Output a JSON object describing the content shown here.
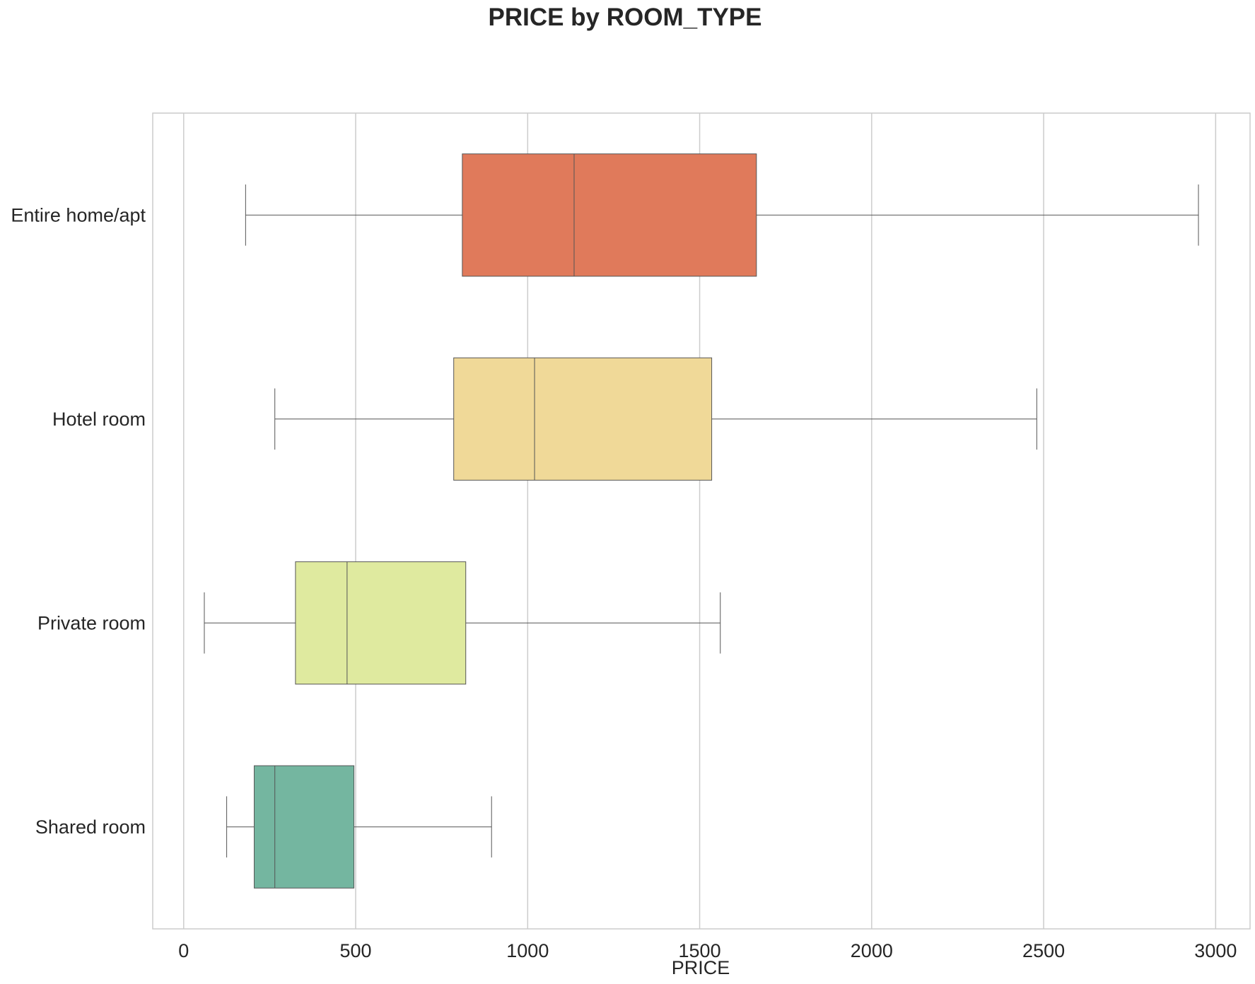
{
  "chart_data": {
    "type": "boxplot",
    "orientation": "horizontal",
    "title": "PRICE by ROOM_TYPE",
    "xlabel": "PRICE",
    "ylabel": "",
    "xlim": [
      -90,
      3100
    ],
    "xticks": [
      0,
      500,
      1000,
      1500,
      2000,
      2500,
      3000
    ],
    "grid": "vertical",
    "categories": [
      "Entire home/apt",
      "Hotel room",
      "Private room",
      "Shared room"
    ],
    "boxes": [
      {
        "category": "Entire home/apt",
        "whisker_low": 180,
        "q1": 810,
        "median": 1135,
        "q3": 1665,
        "whisker_high": 2950,
        "color": "#e07a5b"
      },
      {
        "category": "Hotel room",
        "whisker_low": 265,
        "q1": 785,
        "median": 1020,
        "q3": 1535,
        "whisker_high": 2480,
        "color": "#f0d998"
      },
      {
        "category": "Private room",
        "whisker_low": 60,
        "q1": 325,
        "median": 475,
        "q3": 820,
        "whisker_high": 1560,
        "color": "#dfea9f"
      },
      {
        "category": "Shared room",
        "whisker_low": 125,
        "q1": 205,
        "median": 265,
        "q3": 495,
        "whisker_high": 895,
        "color": "#74b6a0"
      }
    ]
  }
}
